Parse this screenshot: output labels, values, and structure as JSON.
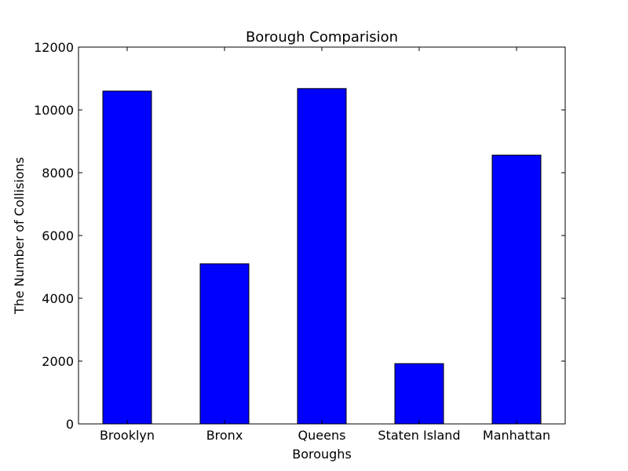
{
  "chart_data": {
    "type": "bar",
    "title": "Borough Comparision",
    "xlabel": "Boroughs",
    "ylabel": "The Number of Collisions",
    "categories": [
      "Brooklyn",
      "Bronx",
      "Queens",
      "Staten Island",
      "Manhattan"
    ],
    "values": [
      10600,
      5100,
      10680,
      1920,
      8560
    ],
    "ylim": [
      0,
      12000
    ],
    "yticks": [
      "0",
      "2000",
      "4000",
      "6000",
      "8000",
      "10000",
      "12000"
    ],
    "grid": false,
    "bar_color": "#0000ff",
    "edge_color": "#000000"
  }
}
